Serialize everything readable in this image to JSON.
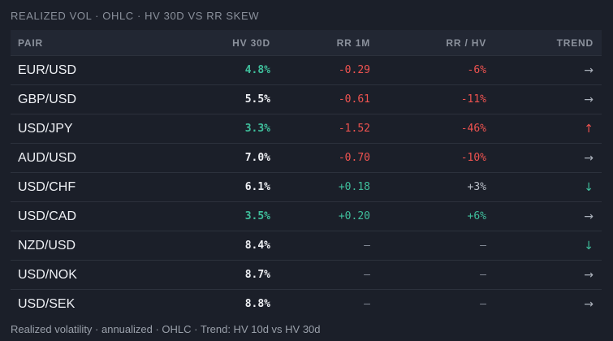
{
  "header": {
    "title": "REALIZED VOL · OHLC · HV 30D VS RR SKEW"
  },
  "table": {
    "columns": [
      "PAIR",
      "HV 30D",
      "RR 1M",
      "RR / HV",
      "TREND"
    ],
    "rows": [
      {
        "pair": "EUR/USD",
        "hv": "4.8%",
        "rr": "-0.29",
        "ratio": "-6%",
        "trend": "→",
        "colors": {
          "hv": "#3fbf9c",
          "rr": "#ef5350",
          "ratio": "#ef5350",
          "trend": "#aab0ba"
        }
      },
      {
        "pair": "GBP/USD",
        "hv": "5.5%",
        "rr": "-0.61",
        "ratio": "-11%",
        "trend": "→",
        "colors": {
          "hv": "#eef0f4",
          "rr": "#ef5350",
          "ratio": "#ef5350",
          "trend": "#aab0ba"
        }
      },
      {
        "pair": "USD/JPY",
        "hv": "3.3%",
        "rr": "-1.52",
        "ratio": "-46%",
        "trend": "↑",
        "colors": {
          "hv": "#3fbf9c",
          "rr": "#ef5350",
          "ratio": "#ef5350",
          "trend": "#ef5350"
        }
      },
      {
        "pair": "AUD/USD",
        "hv": "7.0%",
        "rr": "-0.70",
        "ratio": "-10%",
        "trend": "→",
        "colors": {
          "hv": "#eef0f4",
          "rr": "#ef5350",
          "ratio": "#ef5350",
          "trend": "#aab0ba"
        }
      },
      {
        "pair": "USD/CHF",
        "hv": "6.1%",
        "rr": "+0.18",
        "ratio": "+3%",
        "trend": "↓",
        "colors": {
          "hv": "#eef0f4",
          "rr": "#3fbf9c",
          "ratio": "#b8bdc6",
          "trend": "#3fbf9c"
        }
      },
      {
        "pair": "USD/CAD",
        "hv": "3.5%",
        "rr": "+0.20",
        "ratio": "+6%",
        "trend": "→",
        "colors": {
          "hv": "#3fbf9c",
          "rr": "#3fbf9c",
          "ratio": "#3fbf9c",
          "trend": "#aab0ba"
        }
      },
      {
        "pair": "NZD/USD",
        "hv": "8.4%",
        "rr": "–",
        "ratio": "–",
        "trend": "↓",
        "colors": {
          "hv": "#eef0f4",
          "rr": "#8b919c",
          "ratio": "#8b919c",
          "trend": "#3fbf9c"
        }
      },
      {
        "pair": "USD/NOK",
        "hv": "8.7%",
        "rr": "–",
        "ratio": "–",
        "trend": "→",
        "colors": {
          "hv": "#eef0f4",
          "rr": "#8b919c",
          "ratio": "#8b919c",
          "trend": "#aab0ba"
        }
      },
      {
        "pair": "USD/SEK",
        "hv": "8.8%",
        "rr": "–",
        "ratio": "–",
        "trend": "→",
        "colors": {
          "hv": "#eef0f4",
          "rr": "#8b919c",
          "ratio": "#8b919c",
          "trend": "#aab0ba"
        }
      }
    ]
  },
  "footer": {
    "note": "Realized volatility · annualized · OHLC · Trend: HV 10d vs HV 30d"
  }
}
